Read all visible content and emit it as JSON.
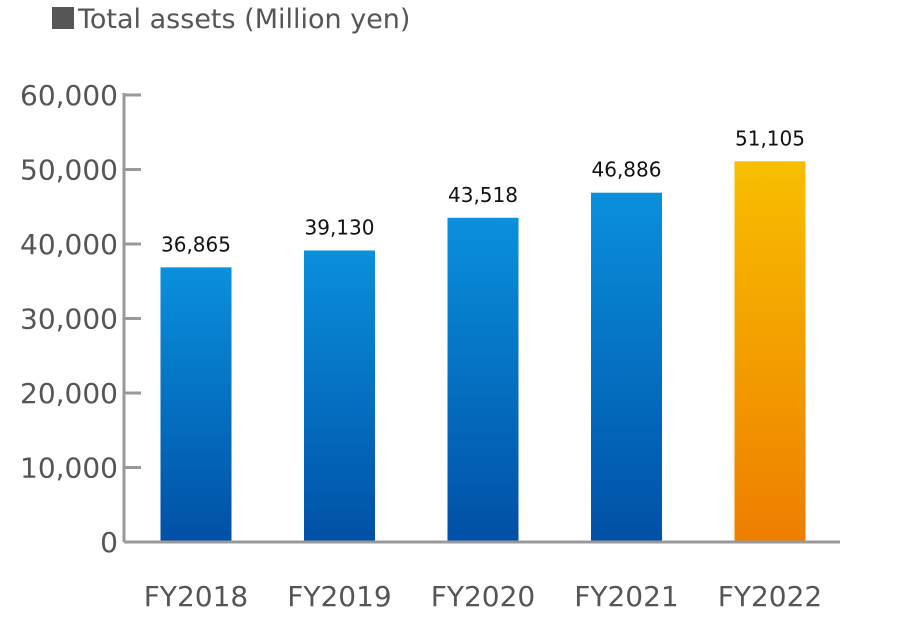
{
  "chart_data": {
    "type": "bar",
    "title": "Total assets (Million yen)",
    "categories": [
      "FY2018",
      "FY2019",
      "FY2020",
      "FY2021",
      "FY2022"
    ],
    "values": [
      36865,
      39130,
      43518,
      46886,
      51105
    ],
    "data_labels": [
      "36,865",
      "39,130",
      "43,518",
      "46,886",
      "51,105"
    ],
    "ylim": [
      0,
      60000
    ],
    "yticks": [
      0,
      10000,
      20000,
      30000,
      40000,
      50000,
      60000
    ],
    "ytick_labels": [
      "0",
      "10,000",
      "20,000",
      "30,000",
      "40,000",
      "50,000",
      "60,000"
    ],
    "xlabel": "",
    "ylabel": "",
    "grid": false,
    "legend": "none",
    "colors": {
      "bar_top": "#0a90dc",
      "bar_bottom": "#0050a6",
      "highlight_top": "#f8be00",
      "highlight_bottom": "#ee7e00",
      "axis": "#999999",
      "text": "#555555"
    },
    "highlight_index": 4
  }
}
